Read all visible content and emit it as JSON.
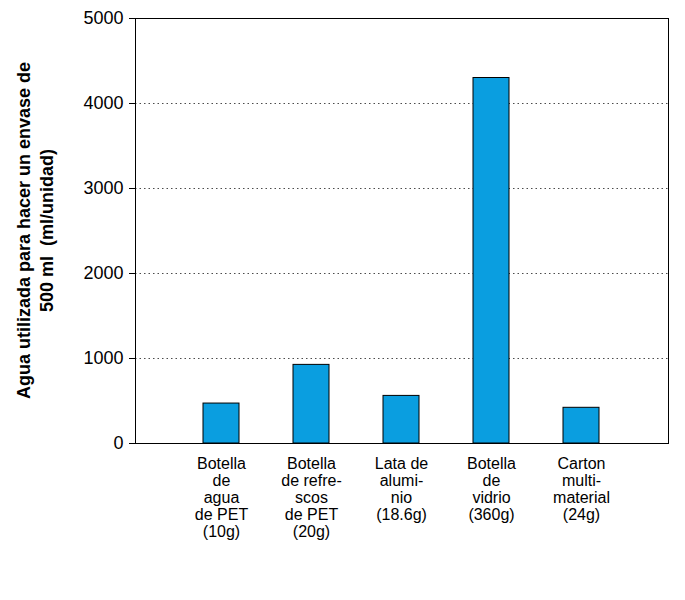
{
  "chart_data": {
    "type": "bar",
    "ylabel": "Agua utilizada para hacer un envase de\n500 ml  (ml/unidad)",
    "categories": [
      "Botella\nde\nagua\nde PET\n(10g)",
      "Botella\nde refre-\nscos\nde PET\n(20g)",
      "Lata de\nalumi-\nnio\n(18.6g)",
      "Botella\nde\nvidrio\n(360g)",
      "Carton\nmulti-\nmaterial\n(24g)"
    ],
    "values": [
      470,
      925,
      560,
      4300,
      420
    ],
    "color": "#0a9ee0",
    "ylim": [
      0,
      5000
    ],
    "yticks": [
      0,
      1000,
      2000,
      3000,
      4000,
      5000
    ],
    "grid": true
  }
}
